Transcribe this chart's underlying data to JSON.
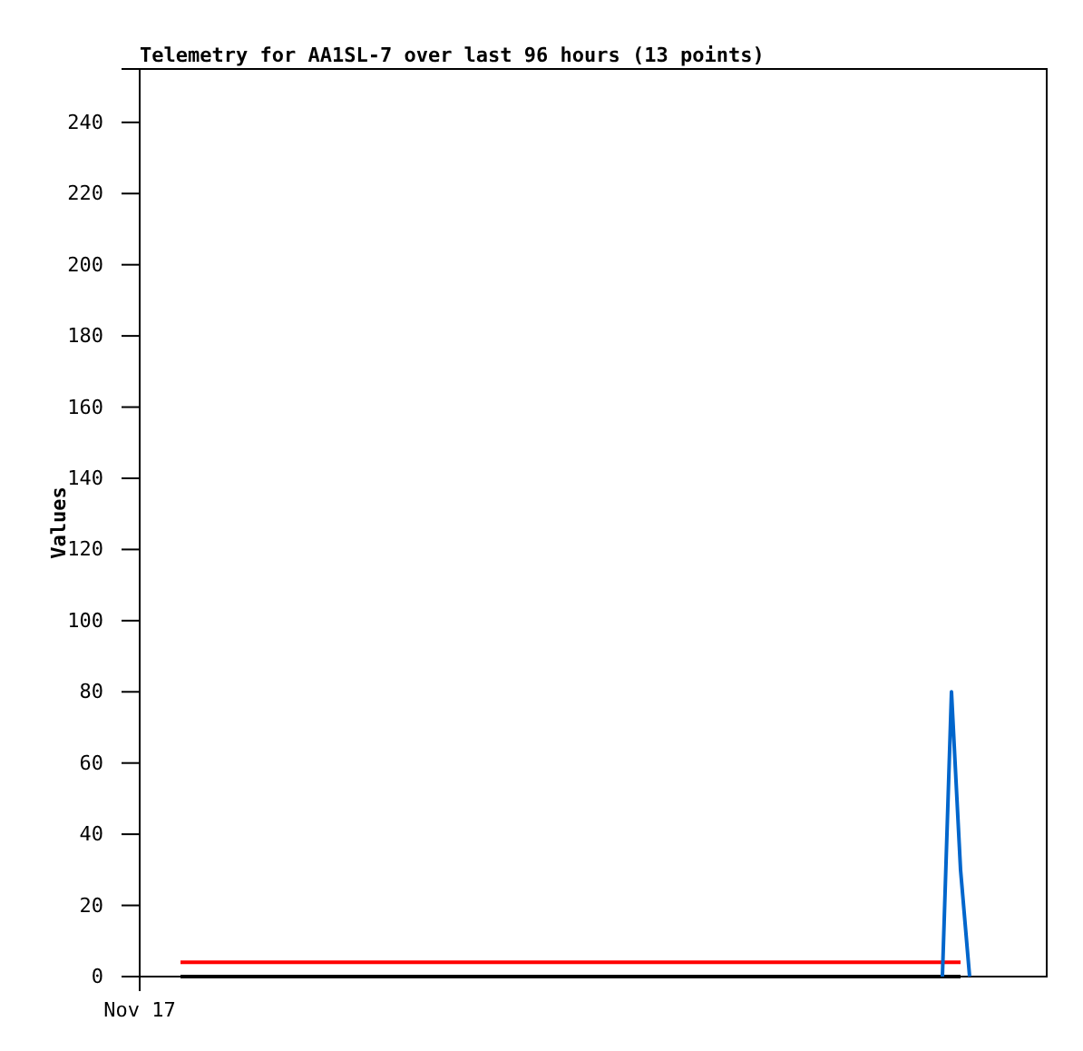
{
  "chart_data": {
    "type": "line",
    "title": "Telemetry for AA1SL-7 over last 96 hours (13 points)",
    "ylabel": "Values",
    "annotations": [
      "Nov 17"
    ],
    "categories": [
      null,
      null,
      null,
      null,
      null,
      null,
      null,
      null,
      null,
      null,
      null,
      null,
      null,
      null,
      null,
      null,
      null,
      null,
      null,
      null,
      null,
      null,
      null,
      null,
      null,
      null,
      null,
      null,
      null,
      null,
      null,
      null,
      null,
      null,
      null,
      null,
      null,
      null,
      null,
      null,
      null,
      null,
      null,
      null,
      null,
      null,
      null,
      null,
      null,
      null,
      null,
      null,
      null,
      null,
      null,
      null,
      null,
      null,
      null,
      null,
      null,
      null,
      null,
      null,
      null,
      null,
      null,
      null,
      null,
      null,
      null,
      null,
      null,
      null,
      null,
      null,
      null,
      null,
      null,
      null,
      null,
      null,
      null,
      null,
      null,
      null,
      null,
      null,
      null,
      null,
      null,
      null,
      null,
      null,
      null,
      null,
      null,
      null,
      null,
      null
    ],
    "ylim": [
      0,
      255
    ],
    "yticks": [
      0,
      20,
      40,
      60,
      80,
      100,
      120,
      140,
      160,
      180,
      200,
      220,
      240
    ],
    "grid": false,
    "legend": false,
    "marker": "none",
    "line_style": "solid",
    "series": [
      {
        "color": "#000000",
        "values": [
          null,
          null,
          null,
          null,
          0,
          0,
          0,
          0,
          0,
          0,
          0,
          0,
          0,
          0,
          0,
          0,
          0,
          0,
          0,
          0,
          0,
          0,
          0,
          0,
          0,
          0,
          0,
          0,
          0,
          0,
          0,
          0,
          0,
          0,
          0,
          0,
          0,
          0,
          0,
          0,
          0,
          0,
          0,
          0,
          0,
          0,
          0,
          0,
          0,
          0,
          0,
          0,
          0,
          0,
          0,
          0,
          0,
          0,
          0,
          0,
          0,
          0,
          0,
          0,
          0,
          0,
          0,
          0,
          0,
          0,
          0,
          0,
          0,
          0,
          0,
          0,
          0,
          0,
          0,
          0,
          0,
          0,
          0,
          0,
          0,
          0,
          0,
          0,
          0,
          0,
          0,
          null,
          null,
          null,
          null,
          null,
          null,
          null,
          null,
          null
        ]
      },
      {
        "color": "#ff0000",
        "values": [
          null,
          null,
          null,
          null,
          4,
          4,
          4,
          4,
          4,
          4,
          4,
          4,
          4,
          4,
          4,
          4,
          4,
          4,
          4,
          4,
          4,
          4,
          4,
          4,
          4,
          4,
          4,
          4,
          4,
          4,
          4,
          4,
          4,
          4,
          4,
          4,
          4,
          4,
          4,
          4,
          4,
          4,
          4,
          4,
          4,
          4,
          4,
          4,
          4,
          4,
          4,
          4,
          4,
          4,
          4,
          4,
          4,
          4,
          4,
          4,
          4,
          4,
          4,
          4,
          4,
          4,
          4,
          4,
          4,
          4,
          4,
          4,
          4,
          4,
          4,
          4,
          4,
          4,
          4,
          4,
          4,
          4,
          4,
          4,
          4,
          4,
          4,
          4,
          4,
          4,
          4,
          null,
          null,
          null,
          null,
          null,
          null,
          null,
          null,
          null
        ]
      },
      {
        "color": "#0066cc",
        "values": [
          null,
          null,
          null,
          null,
          null,
          null,
          null,
          null,
          null,
          null,
          null,
          null,
          null,
          null,
          null,
          null,
          null,
          null,
          null,
          null,
          null,
          null,
          null,
          null,
          null,
          null,
          null,
          null,
          null,
          null,
          null,
          null,
          null,
          null,
          null,
          null,
          null,
          null,
          null,
          null,
          null,
          null,
          null,
          null,
          null,
          null,
          null,
          null,
          null,
          null,
          null,
          null,
          null,
          null,
          null,
          null,
          null,
          null,
          null,
          null,
          null,
          null,
          null,
          null,
          null,
          null,
          null,
          null,
          null,
          null,
          null,
          null,
          null,
          null,
          null,
          null,
          null,
          null,
          null,
          null,
          null,
          null,
          null,
          null,
          null,
          null,
          null,
          null,
          0,
          80,
          30,
          0,
          null,
          null,
          null,
          null,
          null,
          null,
          null,
          null
        ]
      }
    ]
  }
}
